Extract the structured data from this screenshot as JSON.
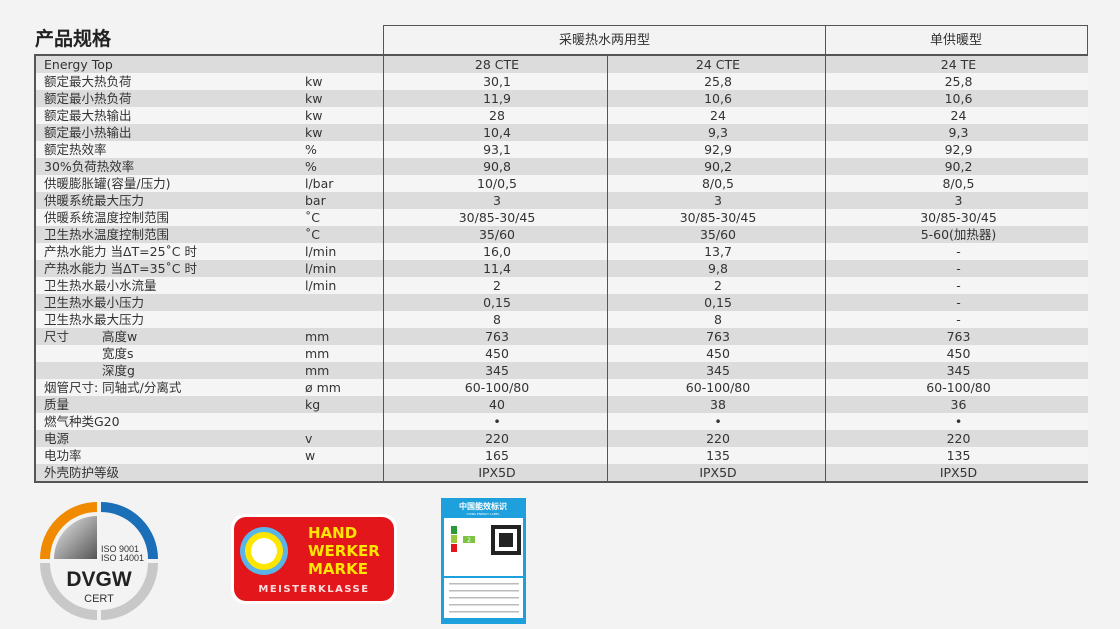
{
  "title": "产品规格",
  "groups": [
    "采暖热水两用型",
    "单供暖型"
  ],
  "series_label": "Energy Top",
  "models": [
    "28 CTE",
    "24 CTE",
    "24 TE"
  ],
  "rows": [
    {
      "label": "额定最大热负荷",
      "unit": "kw",
      "v": [
        "30,1",
        "25,8",
        "25,8"
      ]
    },
    {
      "label": "额定最小热负荷",
      "unit": "kw",
      "v": [
        "11,9",
        "10,6",
        "10,6"
      ]
    },
    {
      "label": "额定最大热输出",
      "unit": "kw",
      "v": [
        "28",
        "24",
        "24"
      ]
    },
    {
      "label": "额定最小热输出",
      "unit": "kw",
      "v": [
        "10,4",
        "9,3",
        "9,3"
      ]
    },
    {
      "label": "额定热效率",
      "unit": "%",
      "v": [
        "93,1",
        "92,9",
        "92,9"
      ]
    },
    {
      "label": "30%负荷热效率",
      "unit": "%",
      "v": [
        "90,8",
        "90,2",
        "90,2"
      ]
    },
    {
      "label": "供暖膨胀罐(容量/压力)",
      "unit": "l/bar",
      "v": [
        "10/0,5",
        "8/0,5",
        "8/0,5"
      ]
    },
    {
      "label": "供暖系统最大压力",
      "unit": "bar",
      "v": [
        "3",
        "3",
        "3"
      ]
    },
    {
      "label": "供暖系统温度控制范围",
      "unit": "˚C",
      "v": [
        "30/85-30/45",
        "30/85-30/45",
        "30/85-30/45"
      ]
    },
    {
      "label": "卫生热水温度控制范围",
      "unit": "˚C",
      "v": [
        "35/60",
        "35/60",
        "5-60(加热器)"
      ]
    },
    {
      "label": "产热水能力 当ΔT=25˚C 时",
      "unit": "l/min",
      "v": [
        "16,0",
        "13,7",
        "-"
      ]
    },
    {
      "label": "产热水能力 当ΔT=35˚C 时",
      "unit": "l/min",
      "v": [
        "11,4",
        "9,8",
        "-"
      ]
    },
    {
      "label": "卫生热水最小水流量",
      "unit": "l/min",
      "v": [
        "2",
        "2",
        "-"
      ]
    },
    {
      "label": "卫生热水最小压力",
      "unit": "",
      "v": [
        "0,15",
        "0,15",
        "-"
      ]
    },
    {
      "label": "卫生热水最大压力",
      "unit": "",
      "v": [
        "8",
        "8",
        "-"
      ]
    },
    {
      "label": "尺寸",
      "sub": "高度w",
      "unit": "mm",
      "v": [
        "763",
        "763",
        "763"
      ]
    },
    {
      "label": "",
      "sub": "宽度s",
      "unit": "mm",
      "v": [
        "450",
        "450",
        "450"
      ]
    },
    {
      "label": "",
      "sub": "深度g",
      "unit": "mm",
      "v": [
        "345",
        "345",
        "345"
      ]
    },
    {
      "label": "烟管尺寸: 同轴式/分离式",
      "unit": "ø mm",
      "v": [
        "60-100/80",
        "60-100/80",
        "60-100/80"
      ]
    },
    {
      "label": "质量",
      "unit": "kg",
      "v": [
        "40",
        "38",
        "36"
      ]
    },
    {
      "label": "燃气种类G20",
      "unit": "",
      "v": [
        "•",
        "•",
        "•"
      ]
    },
    {
      "label": "电源",
      "unit": "v",
      "v": [
        "220",
        "220",
        "220"
      ]
    },
    {
      "label": "电功率",
      "unit": "w",
      "v": [
        "165",
        "135",
        "135"
      ]
    },
    {
      "label": "外壳防护等级",
      "unit": "",
      "v": [
        "IPX5D",
        "IPX5D",
        "IPX5D"
      ]
    }
  ],
  "logos": {
    "dvgw": {
      "iso1": "ISO 9001",
      "iso2": "ISO 14001",
      "name": "DVGW",
      "cert": "CERT"
    },
    "handwerker": {
      "l1": "HAND",
      "l2": "WERKER",
      "l3": "MARKE",
      "l4": "MEISTERKLASSE"
    },
    "energy_label": {
      "title": "中国能效标识",
      "sub": "CHINA ENERGY LABEL",
      "grade": "2"
    }
  },
  "colors": {
    "orange": "#f08a00",
    "blue": "#1a6fb8",
    "red": "#e3161b",
    "yellow": "#ffe600",
    "label_blue": "#1ea0dc"
  }
}
